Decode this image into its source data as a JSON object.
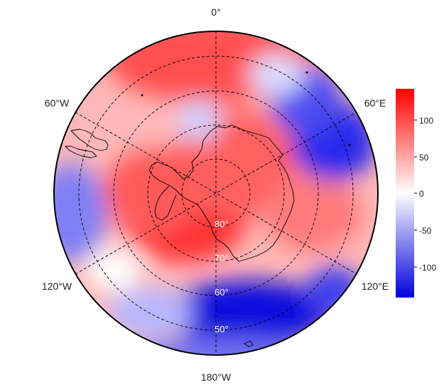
{
  "map": {
    "longitude_labels": [
      "0°",
      "60°E",
      "120°E",
      "180°W",
      "120°W",
      "60°W"
    ],
    "latitude_labels": [
      "80°",
      "70°",
      "60°",
      "50°"
    ],
    "colorbar": {
      "ticks": [
        "100",
        "50",
        "0",
        "-50",
        "-100"
      ],
      "range": [
        -140,
        140
      ],
      "colors": {
        "high": "#ff0000",
        "mid": "#ffffff",
        "low": "#0000dd"
      }
    },
    "icons": [
      "antarctica-coastline",
      "south-america-coastline",
      "islands"
    ]
  }
}
